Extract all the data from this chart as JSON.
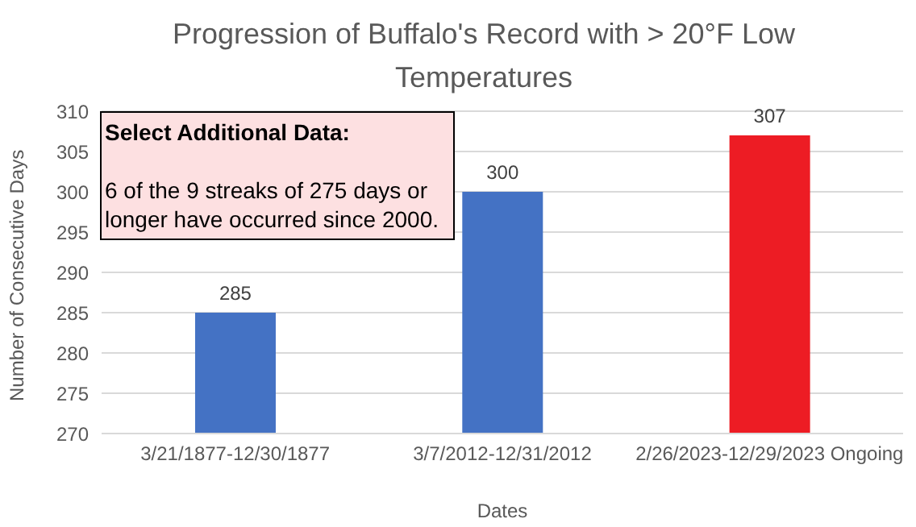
{
  "chart_data": {
    "type": "bar",
    "title": "Progression of Buffalo's Record with > 20°F Low Temperatures",
    "xlabel": "Dates",
    "ylabel": "Number of Consecutive Days",
    "categories": [
      "3/21/1877-12/30/1877",
      "3/7/2012-12/31/2012",
      "2/26/2023-12/29/2023 Ongoing"
    ],
    "values": [
      285,
      300,
      307
    ],
    "colors": [
      "#4472c4",
      "#4472c4",
      "#ed1c24"
    ],
    "ylim": [
      270,
      310
    ],
    "yticks": [
      270,
      275,
      280,
      285,
      290,
      295,
      300,
      305,
      310
    ],
    "grid": "y",
    "data_labels": true,
    "annotations": [
      "Select Additional Data:",
      "6 of the 9 streaks of 275 days or longer have occurred since 2000."
    ]
  }
}
